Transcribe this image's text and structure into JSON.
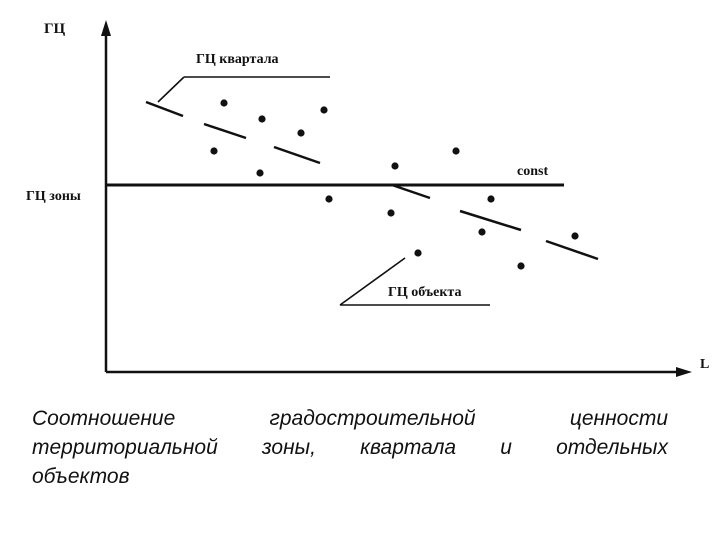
{
  "diagram": {
    "y_axis_label": "ГЦ",
    "x_axis_label": "L",
    "zone_label": "ГЦ зоны",
    "const_label": "const",
    "quarter_label": "ГЦ квартала",
    "object_label": "ГЦ объекта"
  },
  "caption": {
    "line1": "Соотношение градостроительной ценности",
    "line2": "территориальной зоны, квартала и отдельных",
    "line3": "объектов"
  }
}
